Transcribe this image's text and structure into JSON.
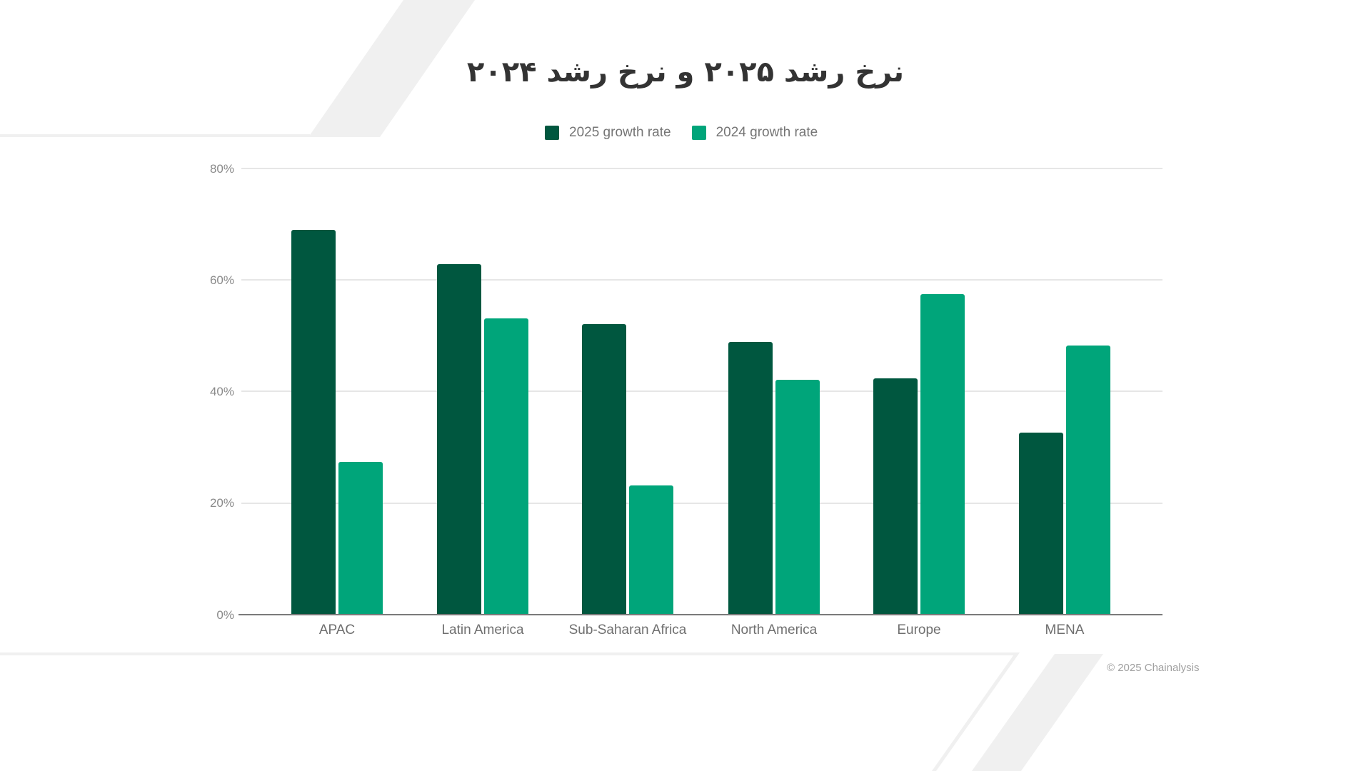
{
  "header": {
    "title": "نرخ رشد ۲۰۲۵ و نرخ رشد ۲۰۲۴"
  },
  "legend": {
    "items": [
      {
        "label": "2025 growth rate",
        "color": "#00573f"
      },
      {
        "label": "2024 growth rate",
        "color": "#00a57a"
      }
    ]
  },
  "axes": {
    "y_ticks": [
      "80%",
      "60%",
      "40%",
      "20%",
      "0%"
    ],
    "x_ticks": [
      "APAC",
      "Latin America",
      "Sub-Saharan Africa",
      "North America",
      "Europe",
      "MENA"
    ]
  },
  "footer": {
    "copyright": "© 2025 Chainalysis"
  },
  "colors": {
    "series_2025": "#00573f",
    "series_2024": "#00a57a",
    "decor": "#f0f0f0",
    "gridline": "#e6e6e6",
    "axis": "#7a7a7a"
  },
  "chart_data": {
    "type": "bar",
    "title": "نرخ رشد ۲۰۲۵ و نرخ رشد ۲۰۲۴",
    "xlabel": "",
    "ylabel": "",
    "categories": [
      "APAC",
      "Latin America",
      "Sub-Saharan Africa",
      "North America",
      "Europe",
      "MENA"
    ],
    "series": [
      {
        "name": "2025 growth rate",
        "color": "#00573f",
        "values": [
          69.0,
          62.9,
          52.1,
          48.9,
          42.4,
          32.7
        ]
      },
      {
        "name": "2024 growth rate",
        "color": "#00a57a",
        "values": [
          27.4,
          53.1,
          23.2,
          42.1,
          57.5,
          48.2
        ]
      }
    ],
    "ylim": [
      0,
      80
    ],
    "y_ticks": [
      0,
      20,
      40,
      60,
      80
    ],
    "y_tick_format": "percent",
    "grid": true,
    "legend_position": "top",
    "annotations": [
      "© 2025 Chainalysis"
    ]
  }
}
